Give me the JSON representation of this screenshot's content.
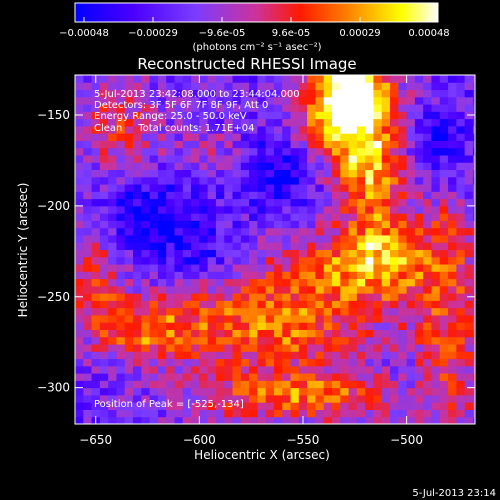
{
  "colorbar": {
    "ticks": [
      "-0.00048",
      "-0.00029",
      "-9.6e-05",
      "9.6e-05",
      "0.00029",
      "0.00048"
    ],
    "units_label": "(photons cm⁻² s⁻¹ asec⁻²)",
    "colors": [
      "#0000ff",
      "#4b00ff",
      "#7a3cff",
      "#cc3399",
      "#ff1a00",
      "#ff8800",
      "#ffff00",
      "#ffffff"
    ]
  },
  "chart_data": {
    "type": "heatmap",
    "title": "Reconstructed RHESSI Image",
    "xlabel": "Heliocentric X (arcsec)",
    "ylabel": "Heliocentric Y (arcsec)",
    "xlim": [
      -660,
      -467
    ],
    "ylim": [
      -320,
      -128
    ],
    "xticks": [
      -650,
      -600,
      -550,
      -500
    ],
    "yticks": [
      -150,
      -200,
      -250,
      -300
    ],
    "zlim": [
      -0.00048,
      0.00048
    ],
    "zunits": "photons cm^-2 s^-1 asec^-2",
    "annotations": [
      "5-Jul-2013 23:42:08.000 to 23:44:04.000",
      "Detectors: 3F 5F 6F 7F 8F 9F, Att 0",
      "Energy Range: 25.0 - 50.0 keV",
      "Clean     Total counts: 1.71E+04"
    ],
    "peak_label": "Position of Peak = [-525,-134]",
    "peak": {
      "x": -525,
      "y": -134
    },
    "intensity_field": {
      "background": -0.00022,
      "grid_step_arcsec": 4,
      "blobs": [
        {
          "x": -530,
          "y": -150,
          "sx": 16,
          "sy": 22,
          "a": 0.00062
        },
        {
          "x": -525,
          "y": -134,
          "sx": 10,
          "sy": 10,
          "a": 0.00045
        },
        {
          "x": -515,
          "y": -190,
          "sx": 12,
          "sy": 30,
          "a": 0.00042
        },
        {
          "x": -520,
          "y": -232,
          "sx": 30,
          "sy": 14,
          "a": 0.0004
        },
        {
          "x": -565,
          "y": -265,
          "sx": 35,
          "sy": 18,
          "a": 0.00046
        },
        {
          "x": -550,
          "y": -305,
          "sx": 40,
          "sy": 10,
          "a": 0.0004
        },
        {
          "x": -625,
          "y": -268,
          "sx": 16,
          "sy": 12,
          "a": 0.00036
        },
        {
          "x": -650,
          "y": -240,
          "sx": 10,
          "sy": 22,
          "a": 0.0003
        },
        {
          "x": -640,
          "y": -155,
          "sx": 14,
          "sy": 20,
          "a": 0.00028
        },
        {
          "x": -480,
          "y": -270,
          "sx": 14,
          "sy": 38,
          "a": 0.0003
        },
        {
          "x": -595,
          "y": -170,
          "sx": 14,
          "sy": 10,
          "a": 0.00016
        },
        {
          "x": -480,
          "y": -210,
          "sx": 8,
          "sy": 10,
          "a": 0.00018
        },
        {
          "x": -625,
          "y": -205,
          "sx": 18,
          "sy": 15,
          "a": -0.00024
        },
        {
          "x": -560,
          "y": -180,
          "sx": 14,
          "sy": 14,
          "a": -0.00026
        },
        {
          "x": -490,
          "y": -165,
          "sx": 12,
          "sy": 12,
          "a": -0.0002
        },
        {
          "x": -600,
          "y": -225,
          "sx": 12,
          "sy": 10,
          "a": -0.00014
        },
        {
          "x": -500,
          "y": -300,
          "sx": 10,
          "sy": 12,
          "a": -0.00012
        }
      ]
    }
  },
  "footer": {
    "timestamp": "5-Jul-2013 23:14"
  }
}
